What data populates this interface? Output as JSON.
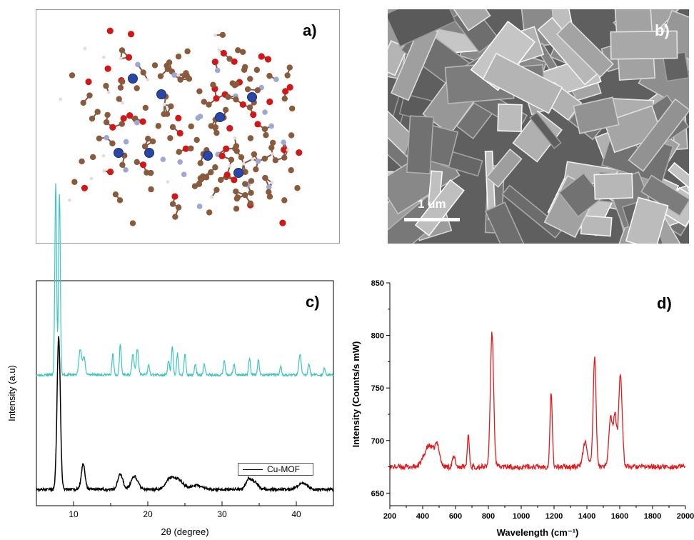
{
  "panels": {
    "a": {
      "label": "a)"
    },
    "b": {
      "label": "b)",
      "scale_bar": "1 um"
    },
    "c": {
      "label": "c)"
    },
    "d": {
      "label": "d)"
    }
  },
  "colors": {
    "atom_c": "#8a5a3c",
    "atom_o": "#d01818",
    "atom_n": "#9ea8d2",
    "atom_cu": "#2a47a8",
    "atom_h": "#f0d8d8",
    "xrd_sim": "#3ec5c1",
    "xrd_exp": "#000000",
    "raman": "#e31a1c"
  },
  "chart_data": [
    {
      "type": "line",
      "panel": "c",
      "xlabel": "2θ (degree)",
      "ylabel": "Intensity (a.u)",
      "xlim": [
        5,
        45
      ],
      "x_ticks": [
        10,
        20,
        30,
        40
      ],
      "legend": {
        "entries": [
          "Cu-MOF"
        ],
        "placement": "lower-right"
      },
      "series": [
        {
          "name": "",
          "color": "#3ec5c1",
          "offset": 0.55,
          "baseline": 0.02,
          "peaks": [
            [
              7.6,
              0.9,
              0.12
            ],
            [
              8.1,
              0.85,
              0.12
            ],
            [
              10.9,
              0.12,
              0.18
            ],
            [
              11.4,
              0.08,
              0.18
            ],
            [
              15.3,
              0.1,
              0.12
            ],
            [
              16.3,
              0.15,
              0.12
            ],
            [
              18.0,
              0.1,
              0.15
            ],
            [
              18.6,
              0.12,
              0.15
            ],
            [
              20.1,
              0.05,
              0.12
            ],
            [
              22.8,
              0.07,
              0.12
            ],
            [
              23.3,
              0.13,
              0.12
            ],
            [
              24.0,
              0.1,
              0.12
            ],
            [
              25.0,
              0.1,
              0.12
            ],
            [
              26.4,
              0.05,
              0.12
            ],
            [
              27.6,
              0.05,
              0.12
            ],
            [
              30.3,
              0.07,
              0.12
            ],
            [
              31.6,
              0.05,
              0.12
            ],
            [
              33.7,
              0.08,
              0.12
            ],
            [
              34.9,
              0.07,
              0.12
            ],
            [
              37.9,
              0.04,
              0.12
            ],
            [
              40.5,
              0.1,
              0.15
            ],
            [
              41.7,
              0.05,
              0.12
            ],
            [
              43.8,
              0.03,
              0.12
            ]
          ]
        },
        {
          "name": "Cu-MOF",
          "color": "#000000",
          "offset": 0.0,
          "baseline": 0.03,
          "peaks": [
            [
              8.0,
              0.72,
              0.22
            ],
            [
              11.3,
              0.12,
              0.25
            ],
            [
              16.3,
              0.07,
              0.35
            ],
            [
              18.2,
              0.06,
              0.45
            ],
            [
              23.0,
              0.05,
              0.6
            ],
            [
              24.2,
              0.04,
              0.6
            ],
            [
              26.5,
              0.02,
              0.7
            ],
            [
              33.6,
              0.05,
              0.4
            ],
            [
              34.5,
              0.03,
              0.4
            ],
            [
              40.8,
              0.03,
              0.6
            ]
          ]
        }
      ]
    },
    {
      "type": "line",
      "panel": "d",
      "xlabel": "Wavelength (cm⁻¹)",
      "ylabel": "Intensity (Counts/s mW)",
      "xlim": [
        200,
        2000
      ],
      "ylim": [
        638,
        850
      ],
      "x_ticks": [
        200,
        400,
        600,
        800,
        1000,
        1200,
        1400,
        1600,
        1800,
        2000
      ],
      "y_ticks": [
        650,
        700,
        750,
        800,
        850
      ],
      "series": [
        {
          "name": "",
          "color": "#e31a1c",
          "baseline": 675,
          "peaks": [
            [
              440,
              20,
              30
            ],
            [
              490,
              17,
              14
            ],
            [
              590,
              9,
              9
            ],
            [
              678,
              31,
              6
            ],
            [
              822,
              127,
              10
            ],
            [
              1182,
              72,
              7
            ],
            [
              1390,
              23,
              14
            ],
            [
              1447,
              103,
              9
            ],
            [
              1545,
              47,
              12
            ],
            [
              1572,
              46,
              9
            ],
            [
              1604,
              87,
              11
            ]
          ]
        }
      ]
    }
  ]
}
